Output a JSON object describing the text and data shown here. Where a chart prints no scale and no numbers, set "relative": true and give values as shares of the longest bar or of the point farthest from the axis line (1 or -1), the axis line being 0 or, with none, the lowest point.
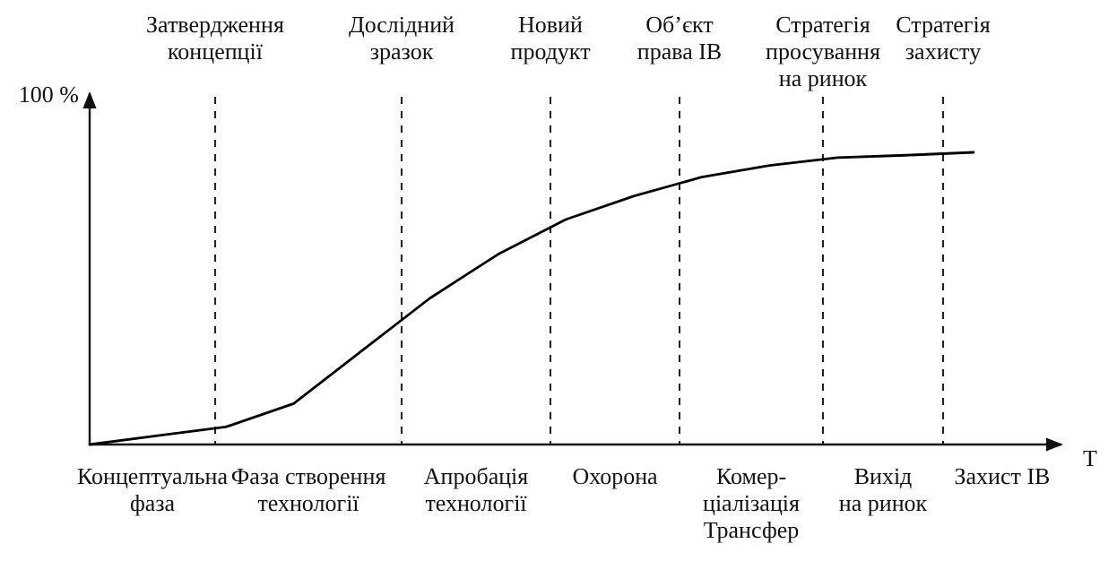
{
  "chart_data": {
    "type": "line",
    "relative": true,
    "ylabel": "100 %",
    "xlabel": "T",
    "categories": [
      null,
      null,
      null,
      null,
      null,
      null,
      null,
      null,
      null,
      null,
      null,
      null,
      null,
      null
    ],
    "series": [
      {
        "color": "#000000",
        "values": [
          0,
          0.03,
          0.06,
          0.14,
          0.32,
          0.5,
          0.65,
          0.77,
          0.85,
          0.915,
          0.955,
          0.982,
          0.99,
          1
        ]
      }
    ],
    "annotations": [
      "Концептуальна\nфаза",
      "Фаза створення\nтехнології",
      "Апробація\nтехнології",
      "Охорона",
      "Комер-\nціалізація\nТрансфер",
      "Вихід\nна ринок",
      "Захист ІВ",
      "Затвердження\nконцепції",
      "Дослідний\nзразок",
      "Новий\nпродукт",
      "Об’єкт\nправа ІВ",
      "Стратегія\nпросування\nна ринок",
      "Стратегія\nзахисту"
    ]
  }
}
